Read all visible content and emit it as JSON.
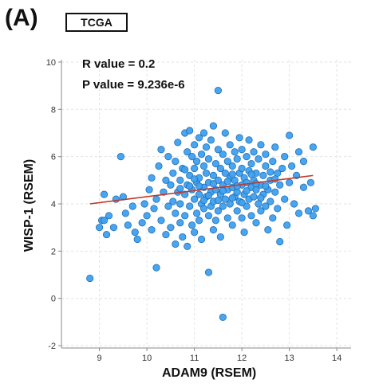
{
  "panel": {
    "letter": "(A)",
    "dataset": "TCGA"
  },
  "stats": {
    "r_text": "R value = 0.2",
    "p_text": "P value = 9.236e-6"
  },
  "colors": {
    "point_fill": "#3fa0ef",
    "point_stroke": "#1f6fb5",
    "fit_line": "#c0392b",
    "grid": "#e2e2e2",
    "axis": "#888888"
  },
  "chart_data": {
    "type": "scatter",
    "xlabel": "ADAM9 (RSEM)",
    "ylabel": "WISP-1 (RSEM)",
    "xlim": [
      8.2,
      14.3
    ],
    "ylim": [
      -2.1,
      10.1
    ],
    "xticks": [
      9,
      10,
      11,
      12,
      13,
      14
    ],
    "yticks": [
      -2,
      0,
      2,
      4,
      6,
      8,
      10
    ],
    "grid": true,
    "fit_line": {
      "x": [
        8.8,
        13.5
      ],
      "y": [
        4.0,
        5.2
      ]
    },
    "points": [
      [
        8.8,
        0.85
      ],
      [
        9.0,
        3.0
      ],
      [
        9.05,
        3.3
      ],
      [
        9.1,
        3.3
      ],
      [
        9.15,
        2.7
      ],
      [
        9.1,
        4.4
      ],
      [
        9.2,
        3.5
      ],
      [
        9.3,
        3.0
      ],
      [
        9.35,
        4.2
      ],
      [
        9.45,
        6.0
      ],
      [
        9.5,
        4.3
      ],
      [
        9.55,
        3.6
      ],
      [
        9.6,
        3.1
      ],
      [
        9.7,
        3.9
      ],
      [
        9.75,
        2.8
      ],
      [
        9.8,
        2.5
      ],
      [
        9.9,
        3.2
      ],
      [
        9.95,
        4.0
      ],
      [
        10.0,
        3.5
      ],
      [
        10.05,
        4.6
      ],
      [
        10.1,
        5.1
      ],
      [
        10.1,
        2.9
      ],
      [
        10.15,
        3.8
      ],
      [
        10.2,
        1.3
      ],
      [
        10.2,
        4.2
      ],
      [
        10.25,
        5.6
      ],
      [
        10.3,
        3.3
      ],
      [
        10.3,
        6.3
      ],
      [
        10.35,
        4.5
      ],
      [
        10.4,
        2.7
      ],
      [
        10.4,
        5.0
      ],
      [
        10.45,
        3.9
      ],
      [
        10.45,
        6.0
      ],
      [
        10.5,
        4.8
      ],
      [
        10.5,
        3.0
      ],
      [
        10.55,
        5.3
      ],
      [
        10.55,
        4.1
      ],
      [
        10.6,
        2.3
      ],
      [
        10.6,
        5.8
      ],
      [
        10.6,
        3.6
      ],
      [
        10.65,
        4.5
      ],
      [
        10.65,
        6.6
      ],
      [
        10.7,
        3.2
      ],
      [
        10.7,
        5.0
      ],
      [
        10.7,
        4.0
      ],
      [
        10.75,
        2.6
      ],
      [
        10.75,
        5.5
      ],
      [
        10.8,
        7.0
      ],
      [
        10.8,
        4.4
      ],
      [
        10.8,
        3.5
      ],
      [
        10.85,
        6.2
      ],
      [
        10.85,
        4.8
      ],
      [
        10.85,
        2.2
      ],
      [
        10.9,
        5.2
      ],
      [
        10.9,
        3.9
      ],
      [
        10.9,
        7.1
      ],
      [
        10.95,
        4.6
      ],
      [
        10.95,
        6.0
      ],
      [
        10.95,
        3.1
      ],
      [
        11.0,
        5.5
      ],
      [
        11.0,
        4.2
      ],
      [
        11.0,
        2.8
      ],
      [
        11.0,
        6.5
      ],
      [
        11.05,
        4.9
      ],
      [
        11.05,
        3.6
      ],
      [
        11.05,
        5.8
      ],
      [
        11.1,
        4.4
      ],
      [
        11.1,
        6.8
      ],
      [
        11.1,
        3.3
      ],
      [
        11.1,
        5.1
      ],
      [
        11.15,
        4.0
      ],
      [
        11.15,
        6.1
      ],
      [
        11.15,
        2.5
      ],
      [
        11.2,
        5.6
      ],
      [
        11.2,
        4.7
      ],
      [
        11.2,
        3.8
      ],
      [
        11.2,
        7.0
      ],
      [
        11.25,
        5.3
      ],
      [
        11.25,
        4.3
      ],
      [
        11.25,
        6.4
      ],
      [
        11.3,
        1.1
      ],
      [
        11.3,
        4.9
      ],
      [
        11.3,
        3.5
      ],
      [
        11.3,
        5.9
      ],
      [
        11.35,
        4.5
      ],
      [
        11.35,
        6.7
      ],
      [
        11.35,
        3.9
      ],
      [
        11.4,
        5.2
      ],
      [
        11.4,
        4.1
      ],
      [
        11.4,
        7.3
      ],
      [
        11.4,
        2.9
      ],
      [
        11.45,
        5.7
      ],
      [
        11.45,
        4.6
      ],
      [
        11.45,
        3.3
      ],
      [
        11.5,
        8.8
      ],
      [
        11.5,
        5.0
      ],
      [
        11.5,
        6.3
      ],
      [
        11.5,
        3.7
      ],
      [
        11.55,
        4.4
      ],
      [
        11.55,
        5.5
      ],
      [
        11.55,
        2.6
      ],
      [
        11.6,
        4.8
      ],
      [
        11.6,
        6.1
      ],
      [
        11.6,
        3.9
      ],
      [
        11.6,
        -0.8
      ],
      [
        11.65,
        5.3
      ],
      [
        11.65,
        4.2
      ],
      [
        11.65,
        7.0
      ],
      [
        11.7,
        4.6
      ],
      [
        11.7,
        5.8
      ],
      [
        11.7,
        3.4
      ],
      [
        11.75,
        5.1
      ],
      [
        11.75,
        4.0
      ],
      [
        11.75,
        6.5
      ],
      [
        11.8,
        4.7
      ],
      [
        11.8,
        5.6
      ],
      [
        11.8,
        3.1
      ],
      [
        11.85,
        4.3
      ],
      [
        11.85,
        6.2
      ],
      [
        11.85,
        5.0
      ],
      [
        11.9,
        4.5
      ],
      [
        11.9,
        5.9
      ],
      [
        11.9,
        3.7
      ],
      [
        11.95,
        5.3
      ],
      [
        11.95,
        4.1
      ],
      [
        11.95,
        6.8
      ],
      [
        12.0,
        4.8
      ],
      [
        12.0,
        5.5
      ],
      [
        12.0,
        3.4
      ],
      [
        12.0,
        6.3
      ],
      [
        12.05,
        4.4
      ],
      [
        12.05,
        5.1
      ],
      [
        12.05,
        2.8
      ],
      [
        12.1,
        4.9
      ],
      [
        12.1,
        6.0
      ],
      [
        12.1,
        3.9
      ],
      [
        12.15,
        5.4
      ],
      [
        12.15,
        4.2
      ],
      [
        12.15,
        6.7
      ],
      [
        12.2,
        4.7
      ],
      [
        12.2,
        5.7
      ],
      [
        12.2,
        3.5
      ],
      [
        12.25,
        5.0
      ],
      [
        12.25,
        4.3
      ],
      [
        12.25,
        6.2
      ],
      [
        12.3,
        4.6
      ],
      [
        12.3,
        5.3
      ],
      [
        12.3,
        3.2
      ],
      [
        12.35,
        5.9
      ],
      [
        12.35,
        4.0
      ],
      [
        12.4,
        4.8
      ],
      [
        12.4,
        6.5
      ],
      [
        12.4,
        3.7
      ],
      [
        12.45,
        5.2
      ],
      [
        12.45,
        4.4
      ],
      [
        12.5,
        5.6
      ],
      [
        12.5,
        3.9
      ],
      [
        12.5,
        6.1
      ],
      [
        12.55,
        4.6
      ],
      [
        12.55,
        2.9
      ],
      [
        12.6,
        5.0
      ],
      [
        12.6,
        4.1
      ],
      [
        12.65,
        5.8
      ],
      [
        12.65,
        3.4
      ],
      [
        12.7,
        4.5
      ],
      [
        12.7,
        6.4
      ],
      [
        12.75,
        5.3
      ],
      [
        12.75,
        3.8
      ],
      [
        12.8,
        4.8
      ],
      [
        12.8,
        2.4
      ],
      [
        12.85,
        5.5
      ],
      [
        12.9,
        4.2
      ],
      [
        12.9,
        6.0
      ],
      [
        12.95,
        3.1
      ],
      [
        13.0,
        4.9
      ],
      [
        13.0,
        6.9
      ],
      [
        13.05,
        5.6
      ],
      [
        13.1,
        4.0
      ],
      [
        13.15,
        5.2
      ],
      [
        13.2,
        3.6
      ],
      [
        13.2,
        6.2
      ],
      [
        13.3,
        4.7
      ],
      [
        13.3,
        5.8
      ],
      [
        13.4,
        3.7
      ],
      [
        13.45,
        4.9
      ],
      [
        13.5,
        3.5
      ],
      [
        13.5,
        6.4
      ],
      [
        13.55,
        3.8
      ],
      [
        11.6,
        4.55
      ],
      [
        11.7,
        4.95
      ],
      [
        11.8,
        4.25
      ],
      [
        11.9,
        4.75
      ],
      [
        12.0,
        4.05
      ],
      [
        12.1,
        4.55
      ],
      [
        11.3,
        4.35
      ],
      [
        11.4,
        4.85
      ],
      [
        11.5,
        4.15
      ],
      [
        10.9,
        4.75
      ],
      [
        11.0,
        5.05
      ],
      [
        11.1,
        4.75
      ],
      [
        11.2,
        4.15
      ],
      [
        12.3,
        4.85
      ],
      [
        12.4,
        4.25
      ],
      [
        12.5,
        4.75
      ],
      [
        12.6,
        5.35
      ],
      [
        12.7,
        5.05
      ],
      [
        10.8,
        5.45
      ],
      [
        10.7,
        4.65
      ],
      [
        12.2,
        5.25
      ],
      [
        11.8,
        5.25
      ]
    ]
  }
}
